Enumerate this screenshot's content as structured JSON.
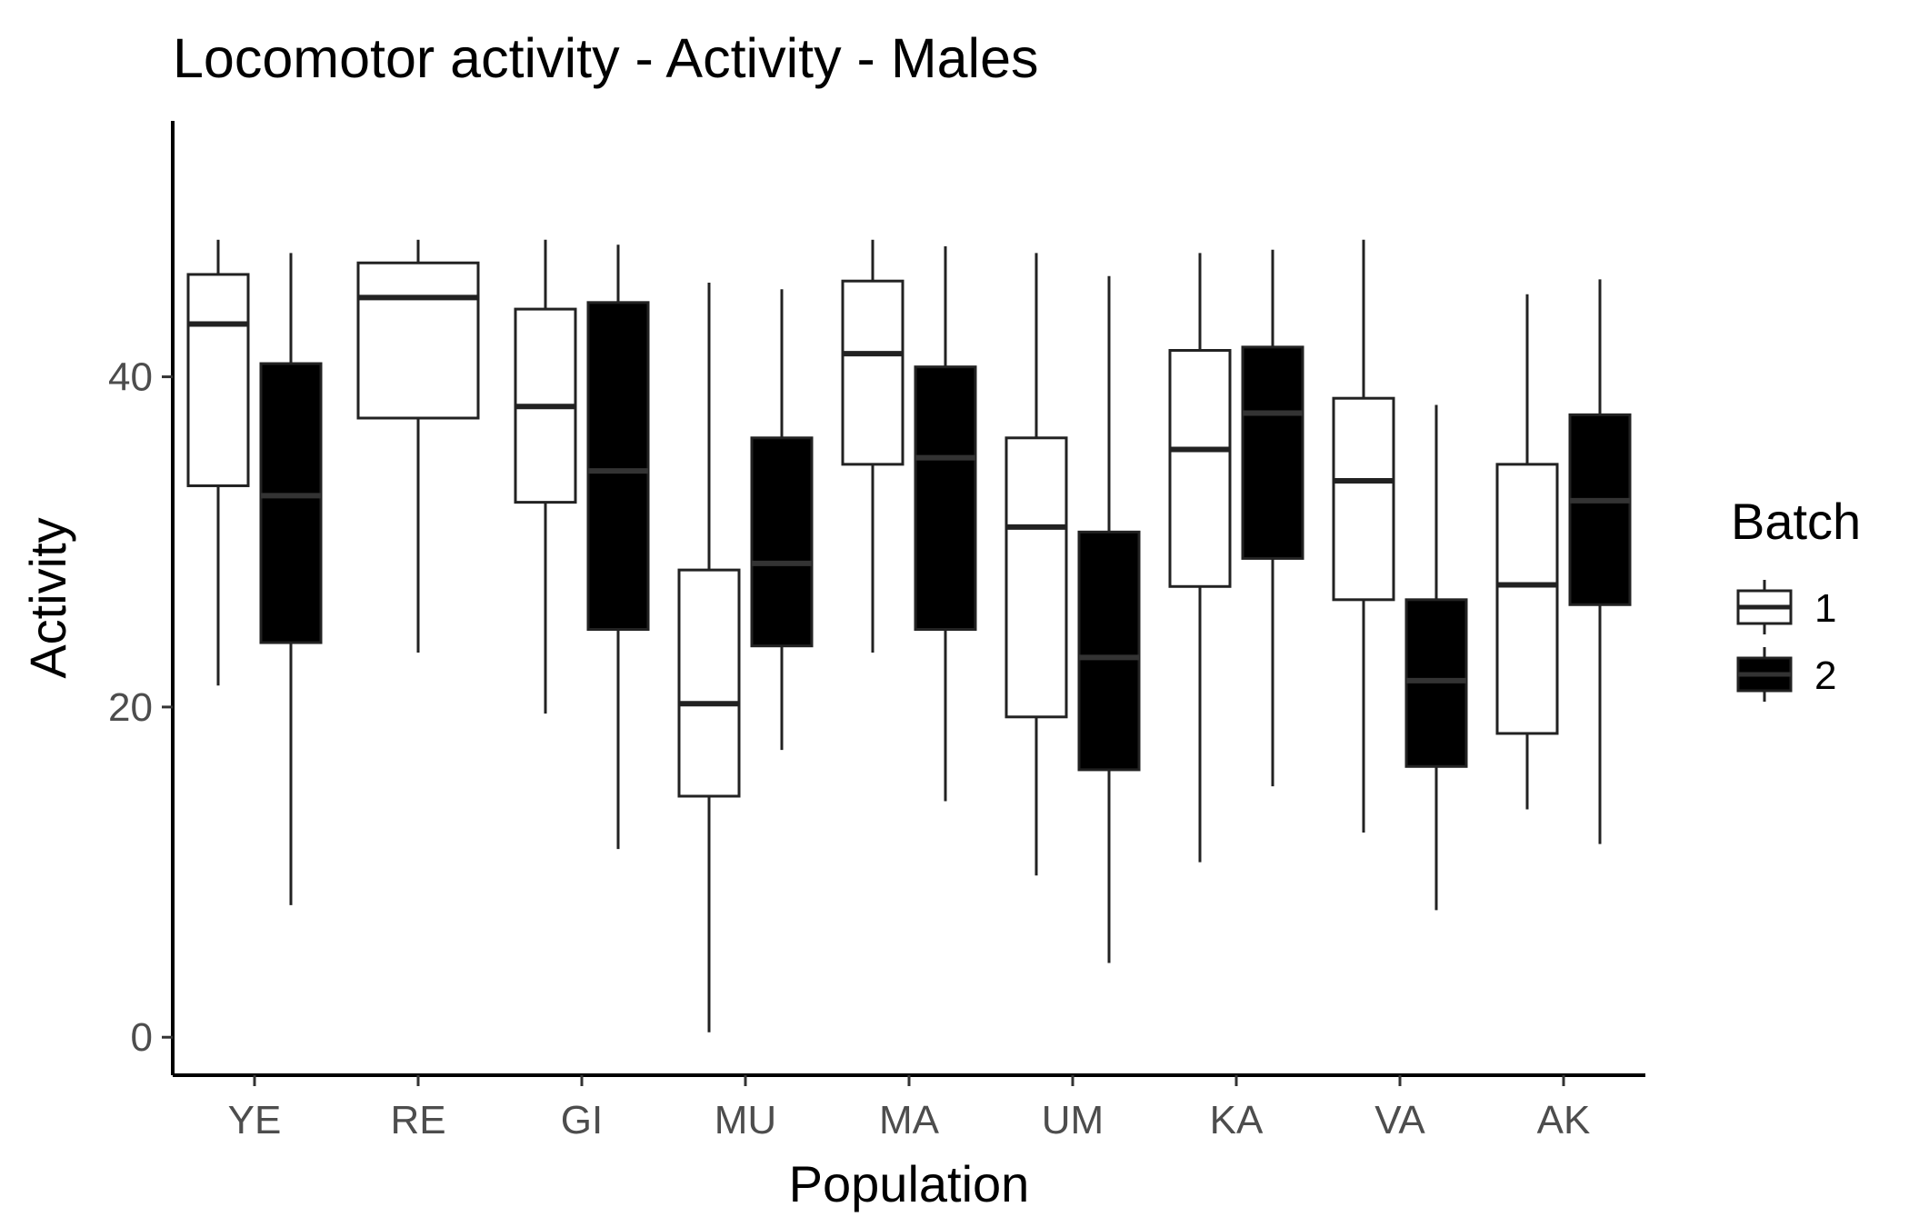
{
  "chart_data": {
    "type": "boxplot",
    "title": "Locomotor activity - Activity - Males",
    "xlabel": "Population",
    "ylabel": "Activity",
    "categories": [
      "YE",
      "RE",
      "GI",
      "MU",
      "MA",
      "UM",
      "KA",
      "VA",
      "AK"
    ],
    "yticks": [
      0,
      20,
      40
    ],
    "ylim": [
      -2.3,
      55.5
    ],
    "grid": false,
    "legend": {
      "title": "Batch",
      "position": "right",
      "entries": [
        "1",
        "2"
      ]
    },
    "series": [
      {
        "name": "1",
        "fill": "#ffffff",
        "stroke": "#222222",
        "median_color": "#222222",
        "boxes": [
          {
            "category": "YE",
            "min": 21.3,
            "q1": 33.4,
            "median": 43.2,
            "q3": 46.2,
            "max": 48.3
          },
          {
            "category": "RE",
            "min": 23.3,
            "q1": 37.5,
            "median": 44.8,
            "q3": 46.9,
            "max": 48.3
          },
          {
            "category": "GI",
            "min": 19.6,
            "q1": 32.4,
            "median": 38.2,
            "q3": 44.1,
            "max": 48.3
          },
          {
            "category": "MU",
            "min": 0.3,
            "q1": 14.6,
            "median": 20.2,
            "q3": 28.3,
            "max": 45.7
          },
          {
            "category": "MA",
            "min": 23.3,
            "q1": 34.7,
            "median": 41.4,
            "q3": 45.8,
            "max": 48.3
          },
          {
            "category": "UM",
            "min": 9.8,
            "q1": 19.4,
            "median": 30.9,
            "q3": 36.3,
            "max": 47.5
          },
          {
            "category": "KA",
            "min": 10.6,
            "q1": 27.3,
            "median": 35.6,
            "q3": 41.6,
            "max": 47.5
          },
          {
            "category": "VA",
            "min": 12.4,
            "q1": 26.5,
            "median": 33.7,
            "q3": 38.7,
            "max": 48.3
          },
          {
            "category": "AK",
            "min": 13.8,
            "q1": 18.4,
            "median": 27.4,
            "q3": 34.7,
            "max": 45.0
          }
        ]
      },
      {
        "name": "2",
        "fill": "#000000",
        "stroke": "#222222",
        "median_color": "#333333",
        "boxes": [
          {
            "category": "YE",
            "min": 8.0,
            "q1": 23.9,
            "median": 32.8,
            "q3": 40.8,
            "max": 47.5
          },
          null,
          {
            "category": "GI",
            "min": 11.4,
            "q1": 24.7,
            "median": 34.3,
            "q3": 44.5,
            "max": 48.0
          },
          {
            "category": "MU",
            "min": 17.4,
            "q1": 23.7,
            "median": 28.7,
            "q3": 36.3,
            "max": 45.3
          },
          {
            "category": "MA",
            "min": 14.3,
            "q1": 24.7,
            "median": 35.1,
            "q3": 40.6,
            "max": 47.9
          },
          {
            "category": "UM",
            "min": 4.5,
            "q1": 16.2,
            "median": 23.0,
            "q3": 30.6,
            "max": 46.1
          },
          {
            "category": "KA",
            "min": 15.2,
            "q1": 29.0,
            "median": 37.8,
            "q3": 41.8,
            "max": 47.7
          },
          {
            "category": "VA",
            "min": 7.7,
            "q1": 16.4,
            "median": 21.6,
            "q3": 26.5,
            "max": 38.3
          },
          {
            "category": "AK",
            "min": 11.7,
            "q1": 26.2,
            "median": 32.5,
            "q3": 37.7,
            "max": 45.9
          }
        ]
      }
    ]
  }
}
